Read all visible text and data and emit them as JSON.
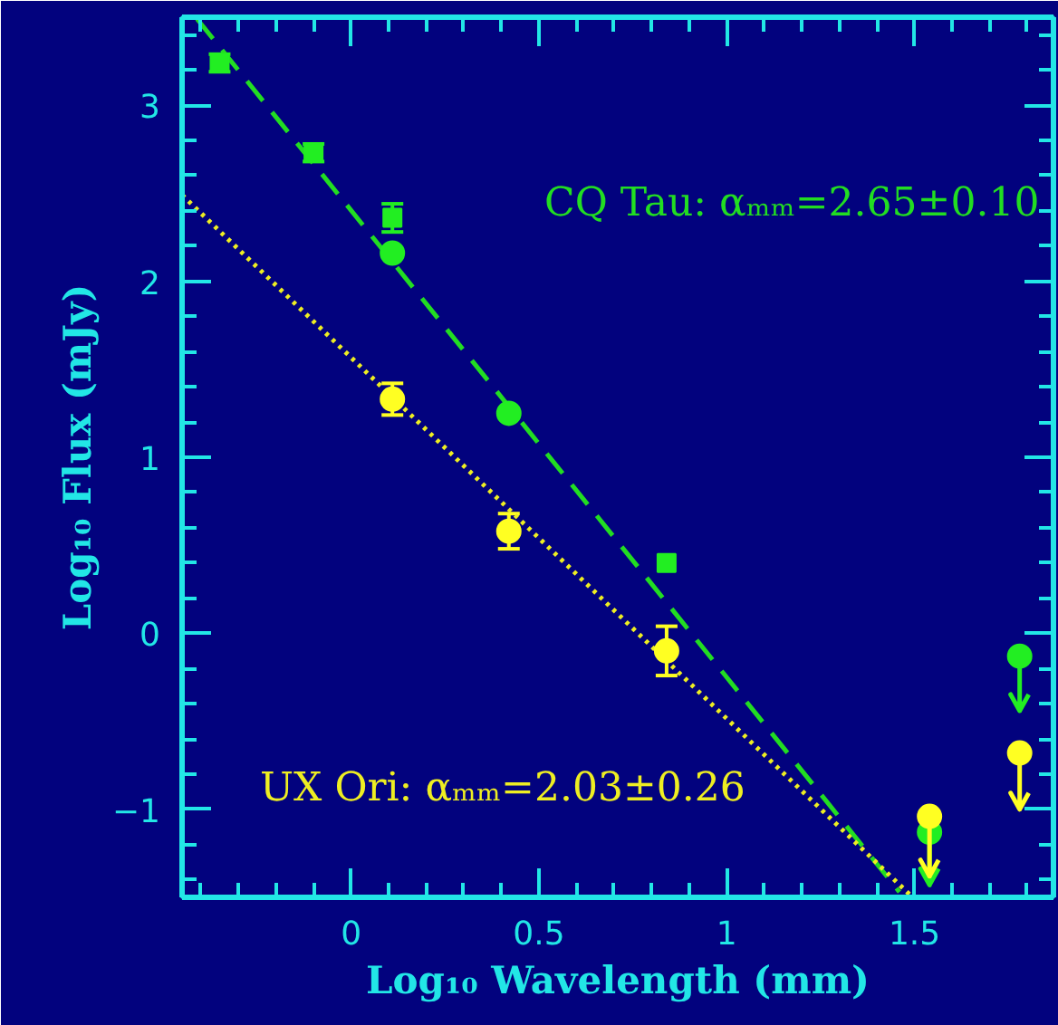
{
  "chart_data": {
    "type": "scatter",
    "xlabel": "Log₁₀ Wavelength (mm)",
    "ylabel": "Log₁₀ Flux (mJy)",
    "xlim": [
      -0.45,
      1.87
    ],
    "ylim": [
      -1.5,
      3.5
    ],
    "xticks": [
      {
        "value": -0.4,
        "label": null
      },
      {
        "value": -0.3,
        "label": null
      },
      {
        "value": -0.2,
        "label": null
      },
      {
        "value": -0.1,
        "label": null
      },
      0,
      {
        "value": 0.1,
        "label": null
      },
      {
        "value": 0.2,
        "label": null
      },
      {
        "value": 0.3,
        "label": null
      },
      {
        "value": 0.4,
        "label": null
      },
      0.5,
      {
        "value": 0.6,
        "label": null
      },
      {
        "value": 0.7,
        "label": null
      },
      {
        "value": 0.8,
        "label": null
      },
      {
        "value": 0.9,
        "label": null
      },
      1,
      {
        "value": 1.1,
        "label": null
      },
      {
        "value": 1.2,
        "label": null
      },
      {
        "value": 1.3,
        "label": null
      },
      {
        "value": 1.4,
        "label": null
      },
      1.5,
      {
        "value": 1.6,
        "label": null
      },
      {
        "value": 1.7,
        "label": null
      },
      {
        "value": 1.8,
        "label": null
      }
    ],
    "yticks": [
      {
        "value": -1.4,
        "label": null
      },
      {
        "value": -1.2,
        "label": null
      },
      {
        "value": -1,
        "label": "−1"
      },
      {
        "value": -0.8,
        "label": null
      },
      {
        "value": -0.6,
        "label": null
      },
      {
        "value": -0.4,
        "label": null
      },
      {
        "value": -0.2,
        "label": null
      },
      0,
      {
        "value": 0.2,
        "label": null
      },
      {
        "value": 0.4,
        "label": null
      },
      {
        "value": 0.6,
        "label": null
      },
      {
        "value": 0.8,
        "label": null
      },
      1,
      {
        "value": 1.2,
        "label": null
      },
      {
        "value": 1.4,
        "label": null
      },
      {
        "value": 1.6,
        "label": null
      },
      {
        "value": 1.8,
        "label": null
      },
      2,
      {
        "value": 2.2,
        "label": null
      },
      {
        "value": 2.4,
        "label": null
      },
      {
        "value": 2.6,
        "label": null
      },
      {
        "value": 2.8,
        "label": null
      },
      3,
      {
        "value": 3.2,
        "label": null
      },
      {
        "value": 3.4,
        "label": null
      }
    ],
    "grid": false,
    "annotations": [
      "CQ Tau: αₘₘ=2.65±0.10",
      "UX Ori: αₘₘ=2.03±0.26"
    ],
    "series": [
      {
        "type": "line",
        "color": "#22dd22",
        "line_style": "dashed",
        "x": [
          -0.41,
          1.46
        ],
        "values": [
          3.49,
          -1.47
        ]
      },
      {
        "type": "line",
        "color": "#eeee22",
        "line_style": "dotted",
        "x": [
          -0.45,
          1.49
        ],
        "values": [
          2.49,
          -1.49
        ]
      },
      {
        "color": "#22ee22",
        "marker": "square",
        "x": [
          -0.35,
          -0.1,
          0.11,
          0.84
        ],
        "values": [
          3.24,
          2.73,
          2.36,
          0.4
        ],
        "errors": [
          0.05,
          0.05,
          0.08,
          null
        ]
      },
      {
        "color": "#22ee22",
        "marker": "circle",
        "x": [
          0.11,
          0.42
        ],
        "values": [
          2.16,
          1.25
        ]
      },
      {
        "color": "#22ee22",
        "marker": "circle",
        "x": [
          1.54,
          1.78
        ],
        "values": [
          -1.13,
          -0.13
        ],
        "errors": [
          [
            -1.43,
            -1.13
          ],
          [
            -0.44,
            -0.13
          ]
        ]
      },
      {
        "color": "#ffff22",
        "marker": "circle",
        "x": [
          0.11,
          0.42,
          0.84
        ],
        "values": [
          1.33,
          0.58,
          -0.1
        ],
        "errors": [
          0.09,
          0.1,
          0.14
        ]
      },
      {
        "color": "#ffff22",
        "marker": "circle",
        "x": [
          1.54,
          1.78
        ],
        "values": [
          -1.04,
          -0.68
        ],
        "errors": [
          [
            -1.38,
            -1.04
          ],
          [
            -1.0,
            -0.68
          ]
        ]
      }
    ]
  }
}
